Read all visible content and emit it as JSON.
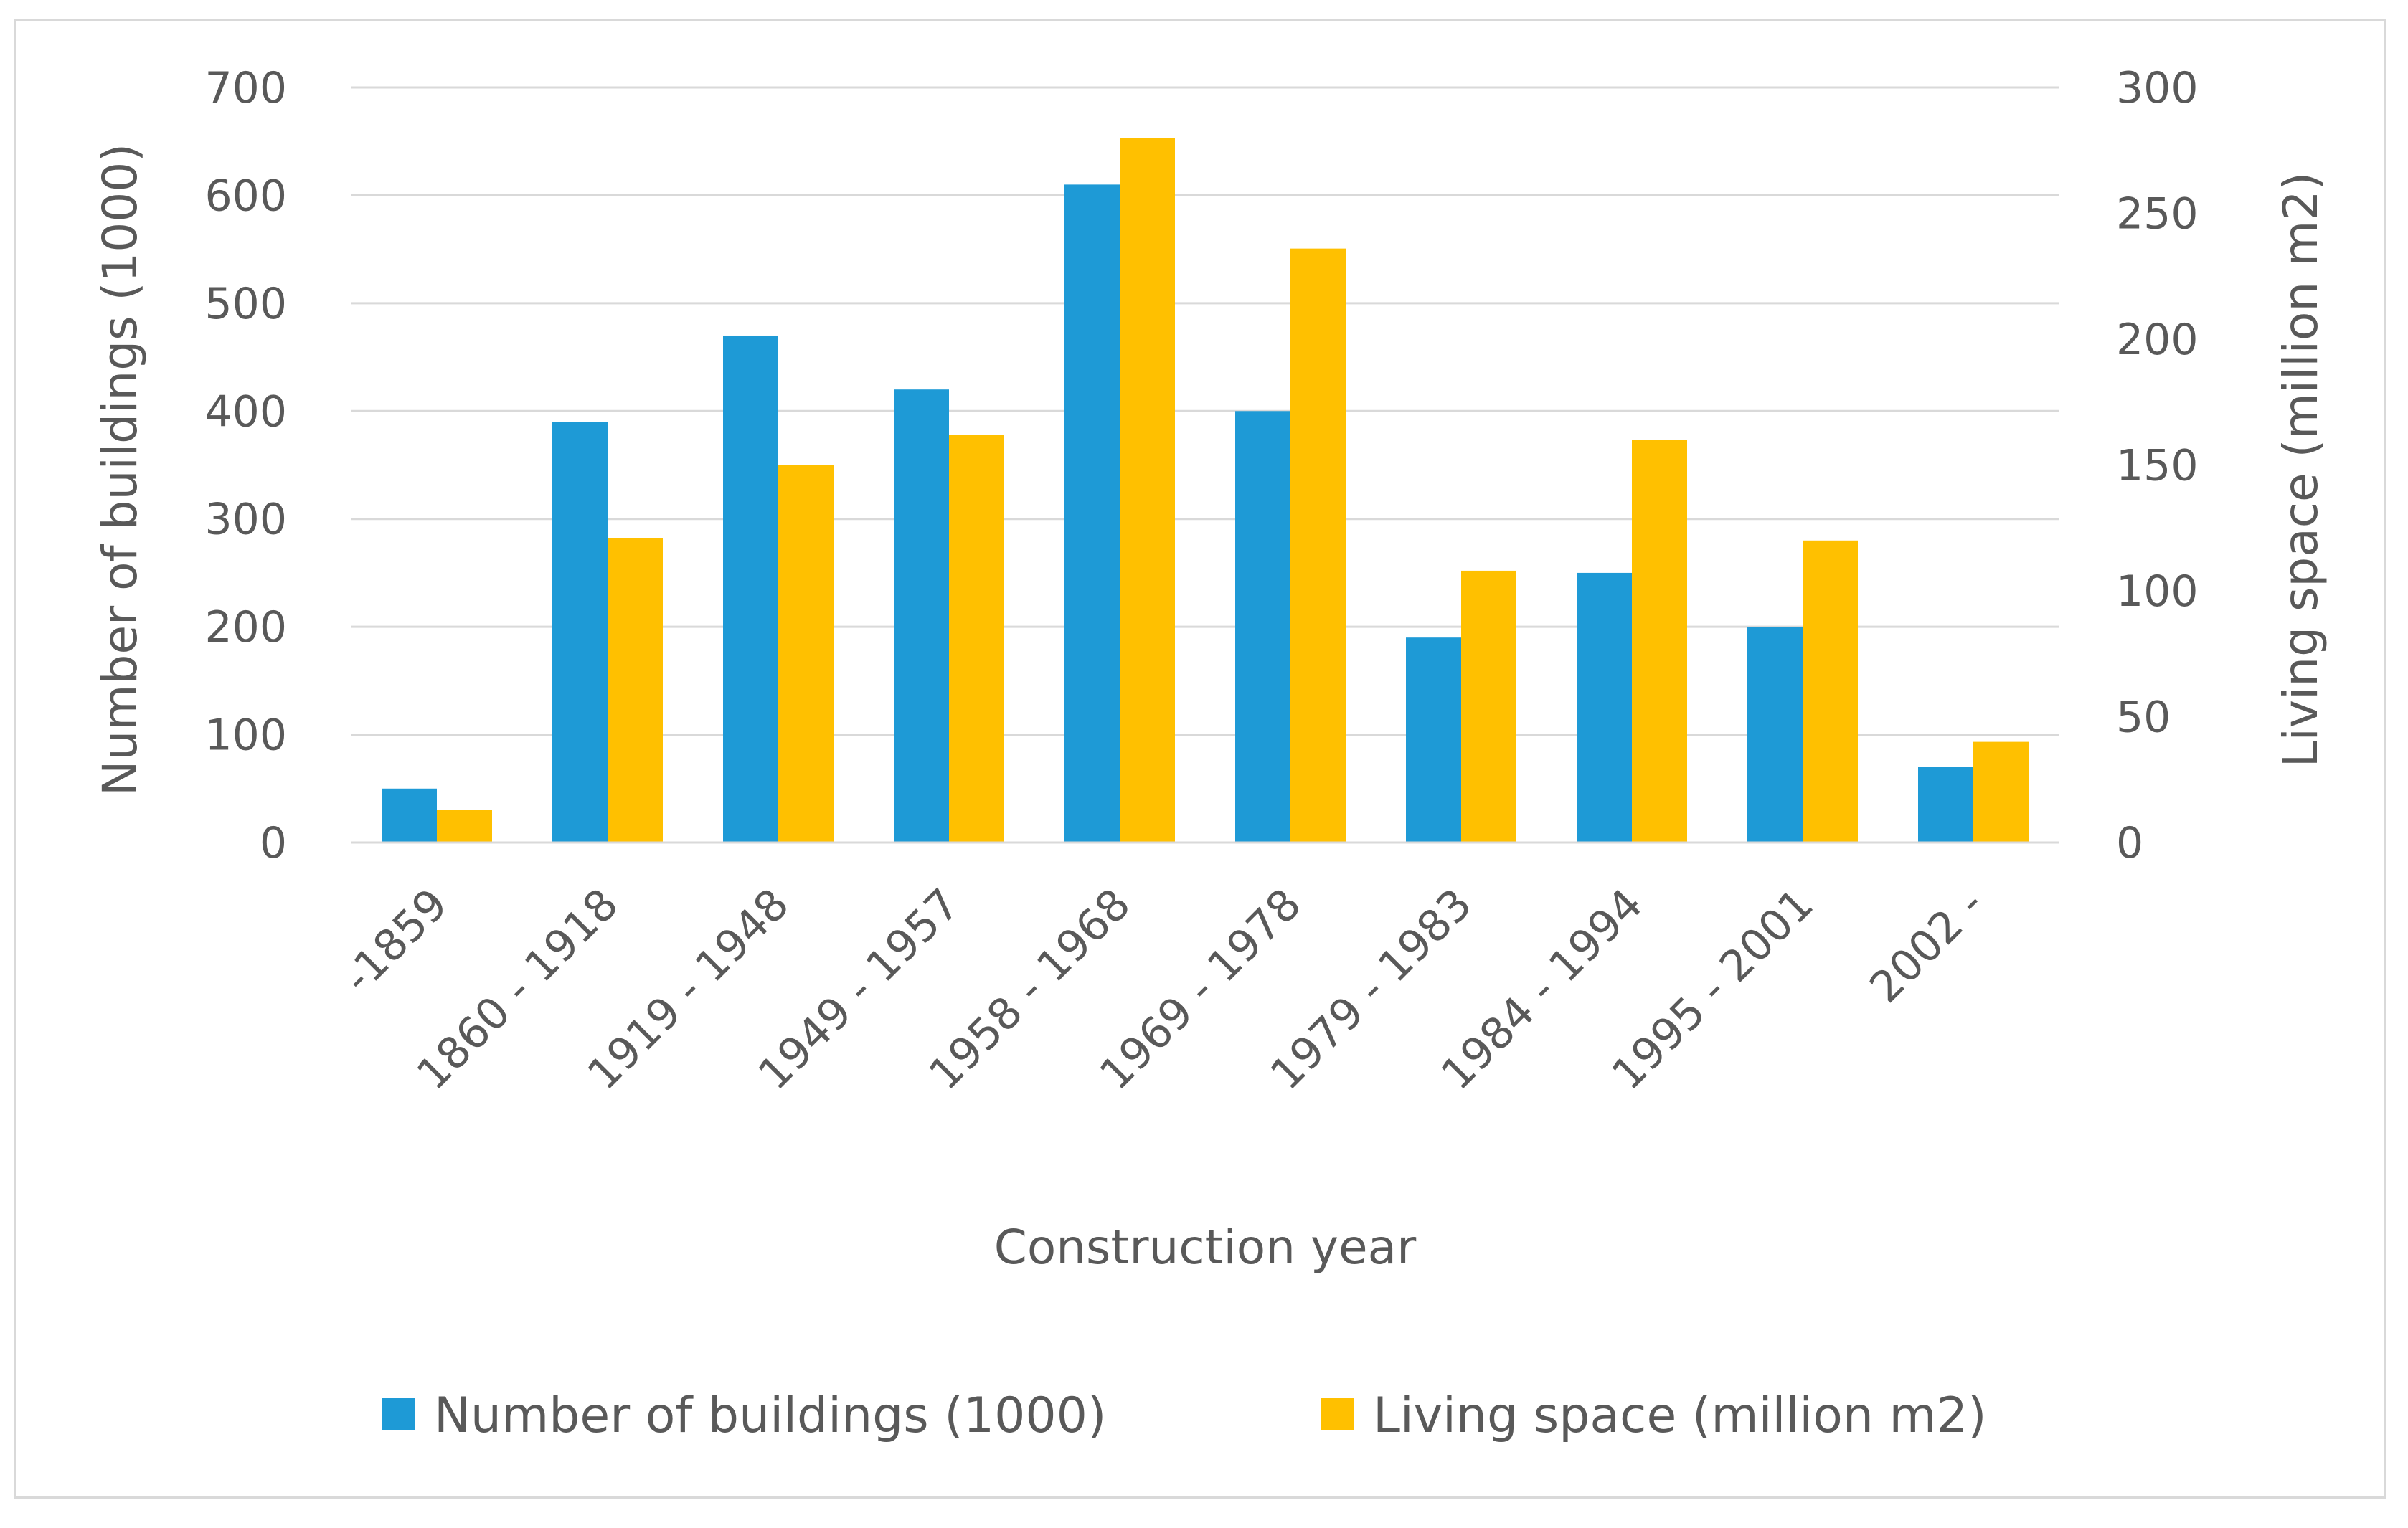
{
  "chart_data": {
    "type": "bar",
    "title": "",
    "categories": [
      "-1859",
      "1860 - 1918",
      "1919 - 1948",
      "1949 - 1957",
      "1958 - 1968",
      "1969 - 1978",
      "1979 - 1983",
      "1984 - 1994",
      "1995 - 2001",
      "2002 -"
    ],
    "series": [
      {
        "name": "Number of buildings (1000)",
        "axis": "left",
        "color": "#1e9ad6",
        "values": [
          50,
          390,
          470,
          420,
          610,
          400,
          190,
          250,
          200,
          70
        ]
      },
      {
        "name": "Living space (million m2)",
        "axis": "right",
        "color": "#ffc000",
        "values": [
          13,
          121,
          150,
          162,
          280,
          236,
          108,
          160,
          120,
          40
        ]
      }
    ],
    "xlabel": "Construction year",
    "ylabel": "Number of buildings (1000)",
    "y2label": "Living space (million m2)",
    "ylim": [
      0,
      700
    ],
    "y2lim": [
      0,
      300
    ],
    "yticks": [
      "0",
      "100",
      "200",
      "300",
      "400",
      "500",
      "600",
      "700"
    ],
    "y2ticks": [
      "0",
      "50",
      "100",
      "150",
      "200",
      "250",
      "300"
    ],
    "grid": true,
    "legend_position": "bottom"
  }
}
